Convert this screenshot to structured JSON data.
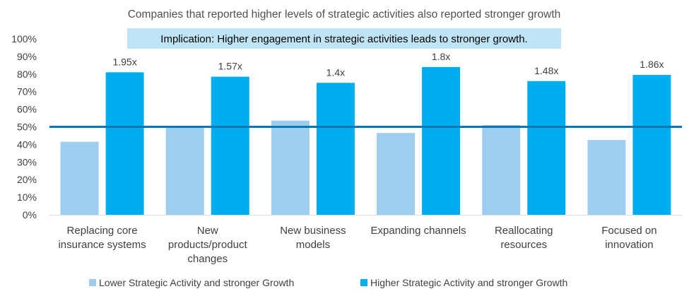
{
  "chart_data": {
    "type": "bar",
    "title": "Companies that reported higher levels of strategic activities also reported stronger growth",
    "implication": "Implication: Higher engagement in strategic activities leads to stronger growth.",
    "categories": [
      [
        "Replacing core",
        "insurance systems"
      ],
      [
        "New",
        "products/product",
        "changes"
      ],
      [
        "New business",
        "models"
      ],
      [
        "Expanding channels"
      ],
      [
        "Reallocating",
        "resources"
      ],
      [
        "Focused on",
        "innovation"
      ]
    ],
    "series": [
      {
        "name": "Lower Strategic Activity and stronger Growth",
        "color": "#9fcdf0",
        "values": [
          41.5,
          50,
          53.5,
          46.5,
          51,
          42.5
        ]
      },
      {
        "name": "Higher Strategic Activity and stronger Growth",
        "color": "#00aeef",
        "values": [
          81,
          78.5,
          75,
          84,
          76,
          79.5
        ]
      }
    ],
    "multipliers": [
      "1.95x",
      "1.57x",
      "1.4x",
      "1.8x",
      "1.48x",
      "1.86x"
    ],
    "reference_line": {
      "value": 50,
      "color": "#0f75b4"
    },
    "yticks": [
      "0%",
      "10%",
      "20%",
      "30%",
      "40%",
      "50%",
      "60%",
      "70%",
      "80%",
      "90%",
      "100%"
    ],
    "ylim": [
      0,
      100
    ],
    "legend_position": "bottom",
    "xlabel": "",
    "ylabel": ""
  }
}
